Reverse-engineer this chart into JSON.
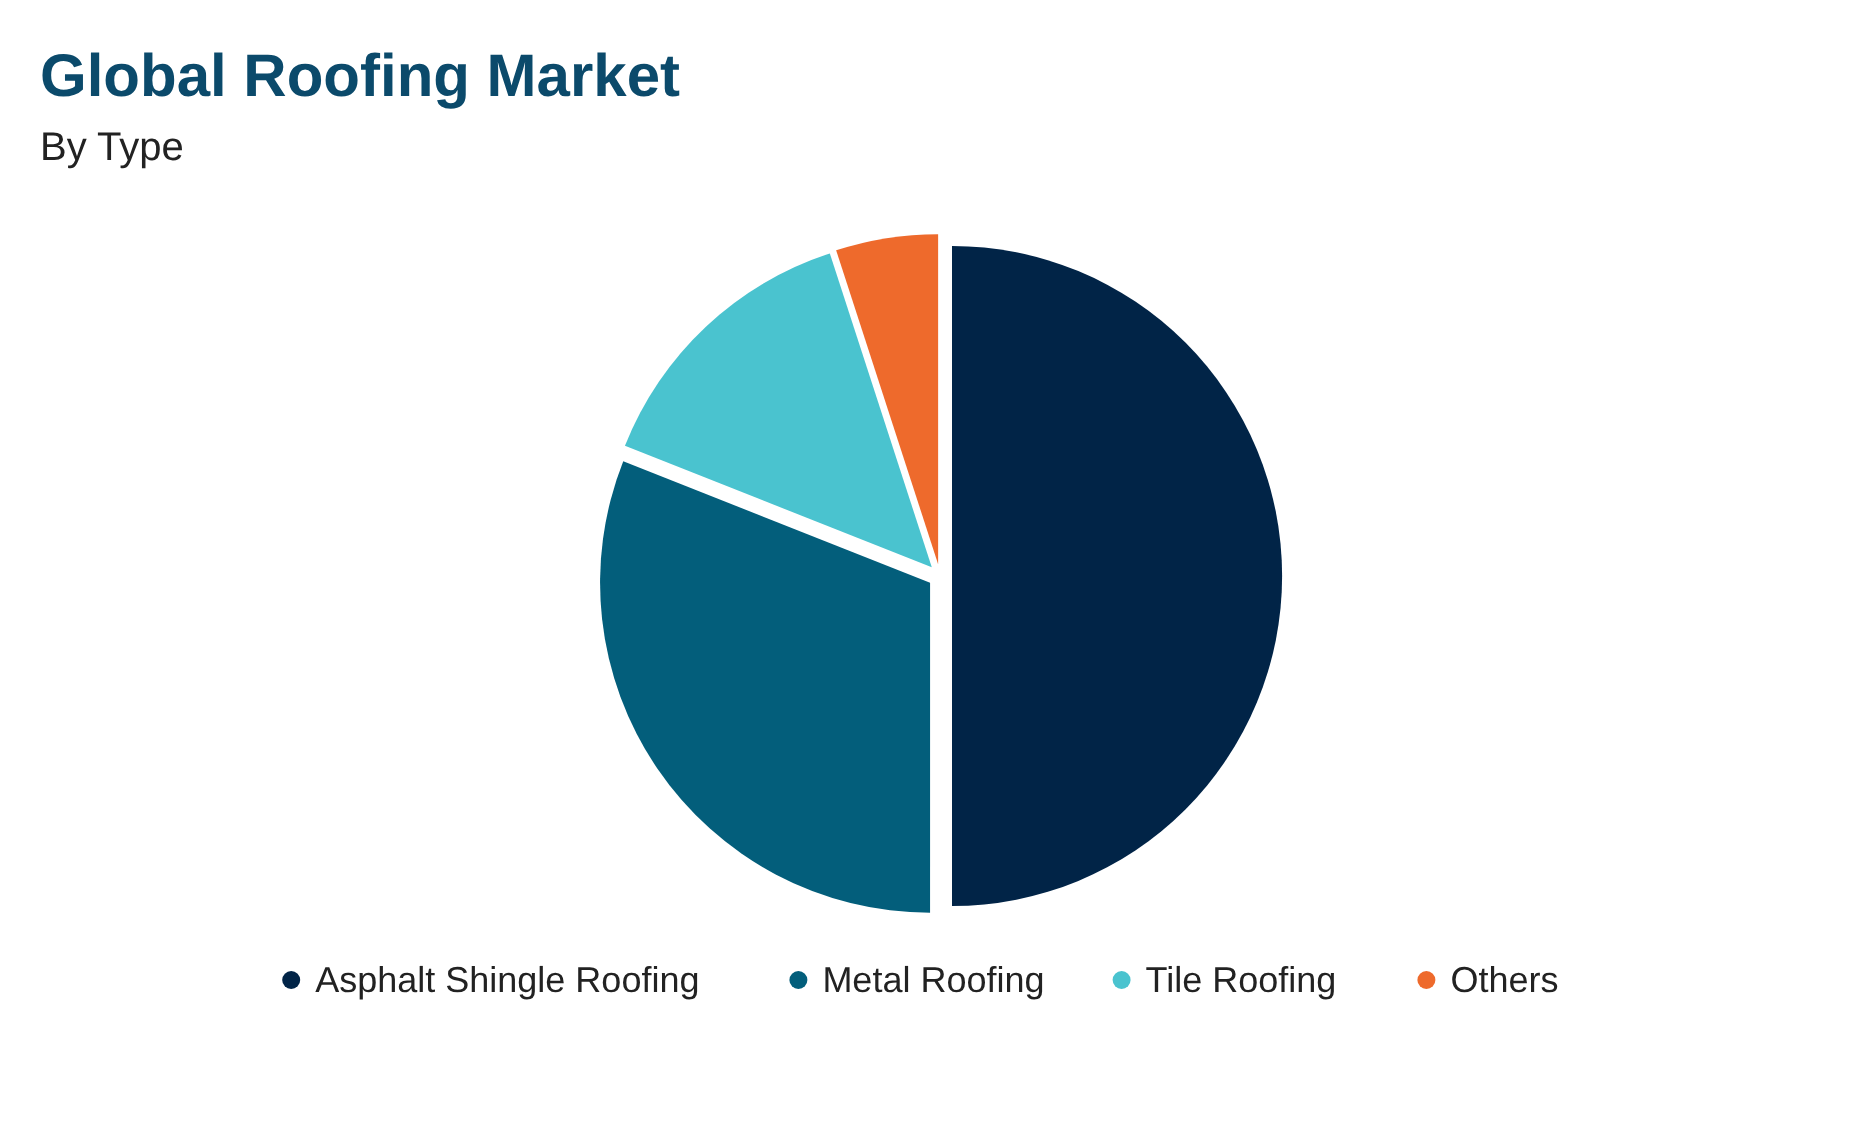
{
  "chart_data": {
    "type": "pie",
    "title": "Global Roofing Market",
    "subtitle": "By Type",
    "categories": [
      "Asphalt Shingle Roofing",
      "Metal Roofing",
      "Tile Roofing",
      "Others"
    ],
    "values": [
      50,
      31,
      14,
      5
    ],
    "colors": [
      "#012447",
      "#035e7b",
      "#4ac3cf",
      "#ee6a2c"
    ],
    "legend": "bottom"
  }
}
